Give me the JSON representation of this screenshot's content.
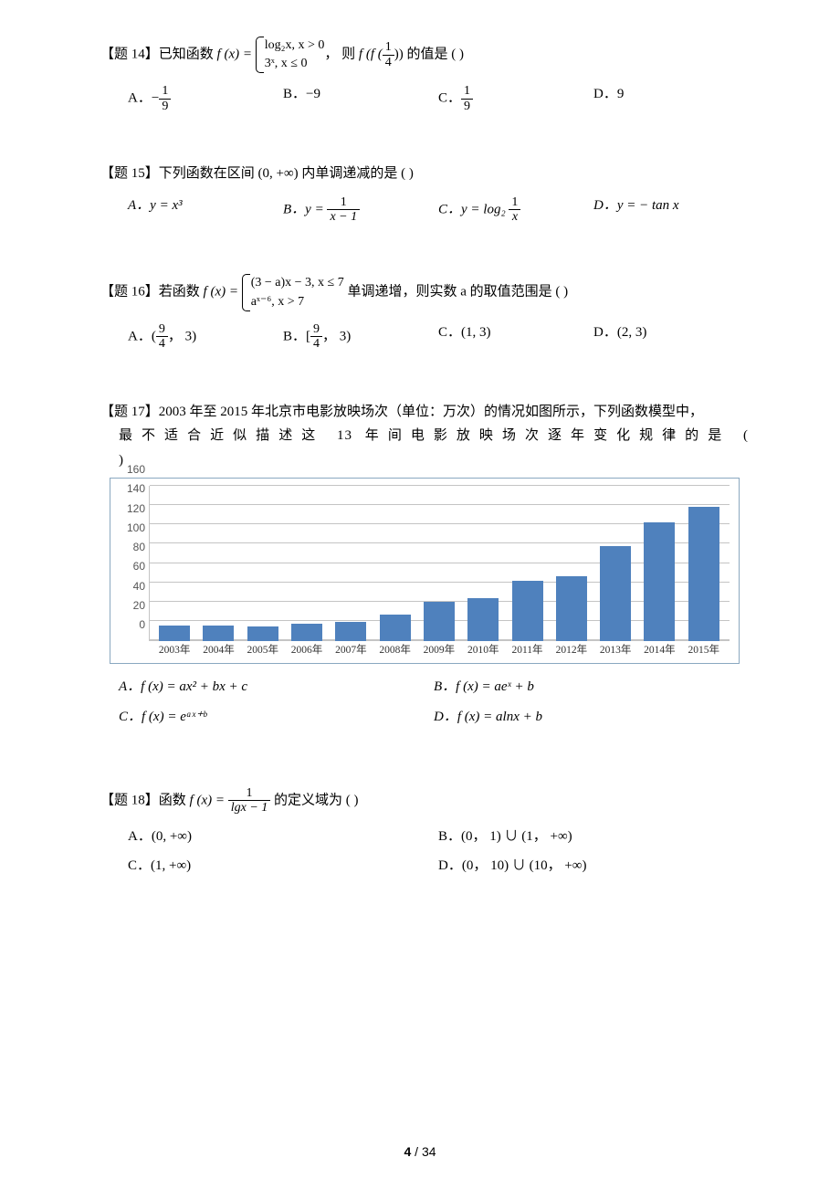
{
  "page": {
    "number": "4",
    "total": "34"
  },
  "q14": {
    "label": "【题 14】",
    "stem_a": "已知函数 ",
    "fx": "f (x) =",
    "brace_top": "log₂x, x > 0",
    "brace_bot": "3ˣ, x ≤ 0",
    "stem_b": "， 则 ",
    "ff": "f (f (",
    "ff_num": "1",
    "ff_den": "4",
    "ff_tail": ")) 的值是 (        )",
    "A_lead": "A．",
    "A_num": "1",
    "A_den": "9",
    "B": "B．−9",
    "C_lead": "C．",
    "C_num": "1",
    "C_den": "9",
    "D": "D．9"
  },
  "q15": {
    "label": "【题 15】",
    "stem": "下列函数在区间 (0, +∞) 内单调递减的是 (        )",
    "A": "A．y = x³",
    "B_lead": "B．y = ",
    "B_num": "1",
    "B_den": "x − 1",
    "C_lead": "C．y = log₂ ",
    "C_num": "1",
    "C_den": "x",
    "D": "D．y = − tan x"
  },
  "q16": {
    "label": "【题 16】",
    "stem_a": "若函数 ",
    "fx": "f (x) =",
    "brace_top": "(3 − a)x − 3, x ≤ 7",
    "brace_bot": "aˣ⁻⁶, x > 7",
    "stem_b": " 单调递增，则实数 a 的取值范围是 (        )",
    "A_lead": "A．(",
    "A_num": "9",
    "A_den": "4",
    "A_tail": "， 3)",
    "B_lead": "B．[",
    "B_num": "9",
    "B_den": "4",
    "B_tail": "， 3)",
    "C": "C．(1, 3)",
    "D": "D．(2, 3)"
  },
  "q17": {
    "label": "【题 17】",
    "stem1": "2003 年至 2015 年北京市电影放映场次（单位：万次）的情况如图所示，下列函数模型中，",
    "stem2": "最不适合近似描述这 13 年间电影放映场次逐年变化规律的是 (",
    "stem3": ")",
    "A": "A．f (x) = ax² + bx + c",
    "B": "B．f (x) = aeˣ + b",
    "C": "C．f (x) = eᵃˣ⁺ᵇ",
    "D": "D．f (x) = alnx + b",
    "chart": {
      "ylim": [
        0,
        160
      ],
      "ytick_step": 20,
      "yticks": [
        "0",
        "20",
        "40",
        "60",
        "80",
        "100",
        "120",
        "140",
        "160"
      ],
      "bar_color": "#4f81bd",
      "grid_color": "#c4c4c4",
      "categories": [
        "2003年",
        "2004年",
        "2005年",
        "2006年",
        "2007年",
        "2008年",
        "2009年",
        "2010年",
        "2011年",
        "2012年",
        "2013年",
        "2014年",
        "2015年"
      ],
      "values": [
        16,
        16,
        15,
        18,
        20,
        27,
        41,
        44,
        62,
        67,
        98,
        122,
        138
      ]
    }
  },
  "q18": {
    "label": "【题 18】",
    "stem_a": "函数 ",
    "fx": "f (x) = ",
    "num": "1",
    "den": "lgx − 1",
    "stem_b": " 的定义域为 (        )",
    "A": "A．(0, +∞)",
    "B": "B．(0， 1) ∪ (1，  +∞)",
    "C": "C．(1, +∞)",
    "D": "D．(0， 10) ∪ (10，  +∞)"
  }
}
